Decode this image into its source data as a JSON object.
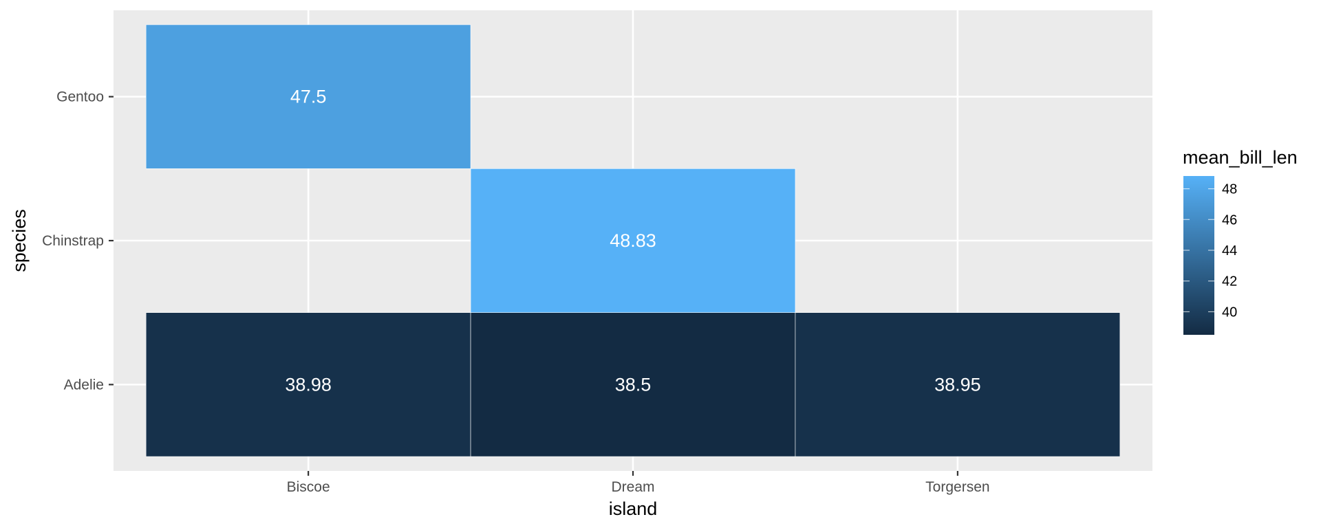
{
  "chart_data": {
    "type": "heatmap",
    "title": "",
    "xlabel": "island",
    "ylabel": "species",
    "x_categories": [
      "Biscoe",
      "Dream",
      "Torgersen"
    ],
    "y_categories": [
      "Adelie",
      "Chinstrap",
      "Gentoo"
    ],
    "cells": [
      {
        "x": "Biscoe",
        "y": "Adelie",
        "value": 38.98,
        "label": "38.98"
      },
      {
        "x": "Dream",
        "y": "Adelie",
        "value": 38.5,
        "label": "38.5"
      },
      {
        "x": "Torgersen",
        "y": "Adelie",
        "value": 38.95,
        "label": "38.95"
      },
      {
        "x": "Dream",
        "y": "Chinstrap",
        "value": 48.83,
        "label": "48.83"
      },
      {
        "x": "Biscoe",
        "y": "Gentoo",
        "value": 47.5,
        "label": "47.5"
      }
    ],
    "legend": {
      "title": "mean_bill_len",
      "position": "right",
      "ticks": [
        40,
        42,
        44,
        46,
        48
      ],
      "range": [
        38.5,
        48.83
      ],
      "low_color": "#132B43",
      "high_color": "#56B1F7"
    },
    "grid": true,
    "panel_background": "#EBEBEB",
    "grid_color": "#FFFFFF"
  }
}
